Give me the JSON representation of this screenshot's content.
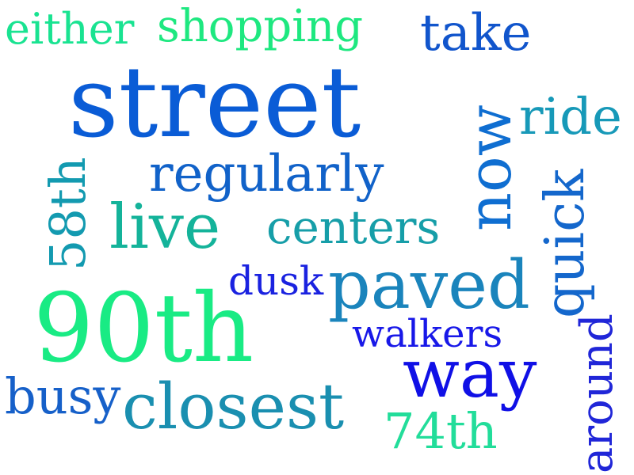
{
  "words": [
    {
      "text": "either",
      "color": "#19e391"
    },
    {
      "text": "shopping",
      "color": "#1ee880"
    },
    {
      "text": "take",
      "color": "#1155cc"
    },
    {
      "text": "street",
      "color": "#0a5cd6"
    },
    {
      "text": "now",
      "color": "#0f6ed1"
    },
    {
      "text": "ride",
      "color": "#1799b8"
    },
    {
      "text": "regularly",
      "color": "#1162c9"
    },
    {
      "text": "58th",
      "color": "#139ab0"
    },
    {
      "text": "live",
      "color": "#14b39a"
    },
    {
      "text": "centers",
      "color": "#169ea8"
    },
    {
      "text": "quick",
      "color": "#1467cc"
    },
    {
      "text": "dusk",
      "color": "#1a22e0"
    },
    {
      "text": "paved",
      "color": "#1a84bc"
    },
    {
      "text": "90th",
      "color": "#19eb84"
    },
    {
      "text": "walkers",
      "color": "#1818e8"
    },
    {
      "text": "around",
      "color": "#2026d8"
    },
    {
      "text": "way",
      "color": "#1010e6"
    },
    {
      "text": "busy",
      "color": "#1660c9"
    },
    {
      "text": "closest",
      "color": "#1a8fb0"
    },
    {
      "text": "74th",
      "color": "#22dd9a"
    }
  ]
}
